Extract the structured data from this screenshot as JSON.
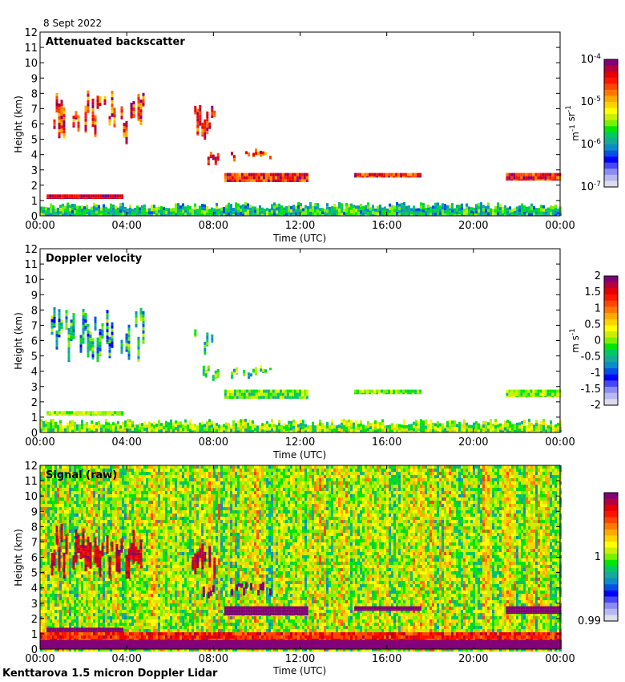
{
  "header": {
    "date": "8 Sept 2022"
  },
  "footer": {
    "instrument": "Kenttarova 1.5 micron Doppler Lidar"
  },
  "colormap": [
    "#dcdcec",
    "#b8b8f0",
    "#8c8cf4",
    "#4646fa",
    "#0000ff",
    "#0050e6",
    "#0a8cc8",
    "#14aa96",
    "#00c864",
    "#00e600",
    "#78f000",
    "#c8f000",
    "#ffff00",
    "#ffd200",
    "#ffaa00",
    "#ff7800",
    "#ff4600",
    "#ff1400",
    "#e60000",
    "#b4003c",
    "#820078"
  ],
  "chart_data": [
    {
      "type": "heatmap",
      "title": "Attenuated backscatter",
      "xlabel": "Time (UTC)",
      "ylabel": "Height (km)",
      "xlim": [
        0,
        24
      ],
      "ylim": [
        0,
        12
      ],
      "xticks": [
        0,
        4,
        8,
        12,
        16,
        20,
        24
      ],
      "xtick_labels": [
        "00:00",
        "04:00",
        "08:00",
        "12:00",
        "16:00",
        "20:00",
        "00:00"
      ],
      "yticks": [
        0,
        1,
        2,
        3,
        4,
        5,
        6,
        7,
        8,
        9,
        10,
        11,
        12
      ],
      "ytick_labels": [
        "0",
        "1",
        "2",
        "3",
        "4",
        "5",
        "6",
        "7",
        "8",
        "9",
        "10",
        "11",
        "12"
      ],
      "colorbar": {
        "scale": "log",
        "range": [
          1e-07,
          0.0001
        ],
        "tick_labels": [
          {
            "base": "10",
            "exp": "-4",
            "value": 0.0001
          },
          {
            "base": "10",
            "exp": "-5",
            "value": 1e-05
          },
          {
            "base": "10",
            "exp": "-6",
            "value": 1e-06
          },
          {
            "base": "10",
            "exp": "-7",
            "value": 1e-07
          }
        ],
        "unit_parts": [
          {
            "t": "m",
            "sup": "-1"
          },
          {
            "t": " sr",
            "sup": "-1"
          }
        ]
      },
      "features": [
        {
          "name": "boundary layer",
          "t": [
            0,
            24
          ],
          "h": [
            0,
            0.9
          ],
          "level": [
            0.25,
            0.55
          ]
        },
        {
          "name": "low cloud",
          "t": [
            0.3,
            3.8
          ],
          "h": [
            1.1,
            1.4
          ],
          "level": [
            0.85,
            1.0
          ]
        },
        {
          "name": "mid cloud",
          "t": [
            0.5,
            4.8
          ],
          "h": [
            4.6,
            8.2
          ],
          "level": [
            0.65,
            1.0
          ]
        },
        {
          "name": "cloud 7km",
          "t": [
            7.0,
            8.0
          ],
          "h": [
            4.6,
            7.3
          ],
          "level": [
            0.7,
            1.0
          ]
        },
        {
          "name": "cloud 4km",
          "t": [
            7.5,
            8.2
          ],
          "h": [
            3.3,
            4.4
          ],
          "level": [
            0.75,
            1.0
          ]
        },
        {
          "name": "cloud 4km b",
          "t": [
            8.8,
            10.6
          ],
          "h": [
            3.5,
            4.4
          ],
          "level": [
            0.6,
            1.0
          ]
        },
        {
          "name": "cloud 2.7km",
          "t": [
            8.5,
            12.3
          ],
          "h": [
            2.2,
            2.8
          ],
          "level": [
            0.7,
            1.0
          ]
        },
        {
          "name": "cloud 2.6km",
          "t": [
            14.5,
            17.5
          ],
          "h": [
            2.5,
            2.8
          ],
          "level": [
            0.7,
            1.0
          ]
        },
        {
          "name": "cloud 2.5km",
          "t": [
            21.5,
            24
          ],
          "h": [
            2.3,
            2.8
          ],
          "level": [
            0.7,
            1.0
          ]
        }
      ]
    },
    {
      "type": "heatmap",
      "title": "Doppler velocity",
      "xlabel": "Time (UTC)",
      "ylabel": "Height (km)",
      "xlim": [
        0,
        24
      ],
      "ylim": [
        0,
        12
      ],
      "xticks": [
        0,
        4,
        8,
        12,
        16,
        20,
        24
      ],
      "xtick_labels": [
        "00:00",
        "04:00",
        "08:00",
        "12:00",
        "16:00",
        "20:00",
        "00:00"
      ],
      "yticks": [
        0,
        1,
        2,
        3,
        4,
        5,
        6,
        7,
        8,
        9,
        10,
        11,
        12
      ],
      "ytick_labels": [
        "0",
        "1",
        "2",
        "3",
        "4",
        "5",
        "6",
        "7",
        "8",
        "9",
        "10",
        "11",
        "12"
      ],
      "colorbar": {
        "scale": "linear",
        "range": [
          -2,
          2
        ],
        "ticks": [
          2,
          1.5,
          1,
          0.5,
          0,
          -0.5,
          -1,
          -1.5,
          -2
        ],
        "tick_labels": [
          "2",
          "1.5",
          "1",
          "0.5",
          "0",
          "-0.5",
          "-1",
          "-1.5",
          "-2"
        ],
        "unit_parts": [
          {
            "t": "m",
            "sup": ""
          },
          {
            "t": " s",
            "sup": "-1"
          }
        ]
      },
      "features": [
        {
          "name": "boundary layer",
          "t": [
            0,
            24
          ],
          "h": [
            0,
            0.9
          ],
          "level": [
            0.35,
            0.65
          ]
        },
        {
          "name": "low cloud",
          "t": [
            0.3,
            3.8
          ],
          "h": [
            1.1,
            1.4
          ],
          "level": [
            0.45,
            0.6
          ]
        },
        {
          "name": "mid cloud",
          "t": [
            0.5,
            4.8
          ],
          "h": [
            4.6,
            8.2
          ],
          "level": [
            0.2,
            0.55
          ]
        },
        {
          "name": "cloud 7km",
          "t": [
            7.0,
            8.0
          ],
          "h": [
            4.6,
            7.3
          ],
          "level": [
            0.25,
            0.55
          ]
        },
        {
          "name": "cloud 4km",
          "t": [
            7.5,
            8.2
          ],
          "h": [
            3.3,
            4.4
          ],
          "level": [
            0.35,
            0.55
          ]
        },
        {
          "name": "cloud 4km b",
          "t": [
            8.8,
            10.6
          ],
          "h": [
            3.5,
            4.4
          ],
          "level": [
            0.3,
            0.6
          ]
        },
        {
          "name": "cloud 2.7km",
          "t": [
            8.5,
            12.3
          ],
          "h": [
            2.2,
            2.8
          ],
          "level": [
            0.35,
            0.6
          ]
        },
        {
          "name": "cloud 2.6km",
          "t": [
            14.5,
            17.5
          ],
          "h": [
            2.5,
            2.8
          ],
          "level": [
            0.4,
            0.6
          ]
        },
        {
          "name": "cloud 2.5km",
          "t": [
            21.5,
            24
          ],
          "h": [
            2.3,
            2.8
          ],
          "level": [
            0.4,
            0.6
          ]
        }
      ]
    },
    {
      "type": "heatmap",
      "title": "Signal (raw)",
      "xlabel": "Time (UTC)",
      "ylabel": "Height (km)",
      "xlim": [
        0,
        24
      ],
      "ylim": [
        0,
        12
      ],
      "xticks": [
        0,
        4,
        8,
        12,
        16,
        20,
        24
      ],
      "xtick_labels": [
        "00:00",
        "04:00",
        "08:00",
        "12:00",
        "16:00",
        "20:00",
        "00:00"
      ],
      "yticks": [
        0,
        1,
        2,
        3,
        4,
        5,
        6,
        7,
        8,
        9,
        10,
        11,
        12
      ],
      "ytick_labels": [
        "0",
        "1",
        "2",
        "3",
        "4",
        "5",
        "6",
        "7",
        "8",
        "9",
        "10",
        "11",
        "12"
      ],
      "colorbar": {
        "scale": "linear",
        "range": [
          0.99,
          1.01
        ],
        "ticks": [
          1,
          0.99
        ],
        "tick_labels": [
          "1",
          "0.99"
        ],
        "unit_parts": []
      },
      "background_level": [
        0.4,
        0.7
      ],
      "features": [
        {
          "name": "near surface",
          "t": [
            0,
            24
          ],
          "h": [
            0,
            0.6
          ],
          "level": [
            1.0,
            1.0
          ]
        },
        {
          "name": "overlap zone",
          "t": [
            0,
            24
          ],
          "h": [
            0.6,
            1.1
          ],
          "level": [
            0.75,
            0.95
          ]
        },
        {
          "name": "low cloud",
          "t": [
            0.3,
            3.8
          ],
          "h": [
            1.1,
            1.4
          ],
          "level": [
            1.0,
            1.0
          ]
        },
        {
          "name": "mid cloud",
          "t": [
            0.5,
            4.8
          ],
          "h": [
            4.6,
            8.2
          ],
          "level": [
            0.85,
            1.0
          ]
        },
        {
          "name": "cloud 7km",
          "t": [
            7.0,
            8.0
          ],
          "h": [
            4.6,
            7.3
          ],
          "level": [
            0.9,
            1.0
          ]
        },
        {
          "name": "cloud 4km",
          "t": [
            7.5,
            8.2
          ],
          "h": [
            3.3,
            4.4
          ],
          "level": [
            1.0,
            1.0
          ]
        },
        {
          "name": "cloud 4km b",
          "t": [
            8.8,
            10.6
          ],
          "h": [
            3.5,
            4.4
          ],
          "level": [
            1.0,
            1.0
          ]
        },
        {
          "name": "cloud 2.7km",
          "t": [
            8.5,
            12.3
          ],
          "h": [
            2.2,
            2.8
          ],
          "level": [
            1.0,
            1.0
          ]
        },
        {
          "name": "cloud 2.6km",
          "t": [
            14.5,
            17.5
          ],
          "h": [
            2.5,
            2.8
          ],
          "level": [
            1.0,
            1.0
          ]
        },
        {
          "name": "cloud 2.5km",
          "t": [
            21.5,
            24
          ],
          "h": [
            2.3,
            2.8
          ],
          "level": [
            1.0,
            1.0
          ]
        }
      ]
    }
  ]
}
